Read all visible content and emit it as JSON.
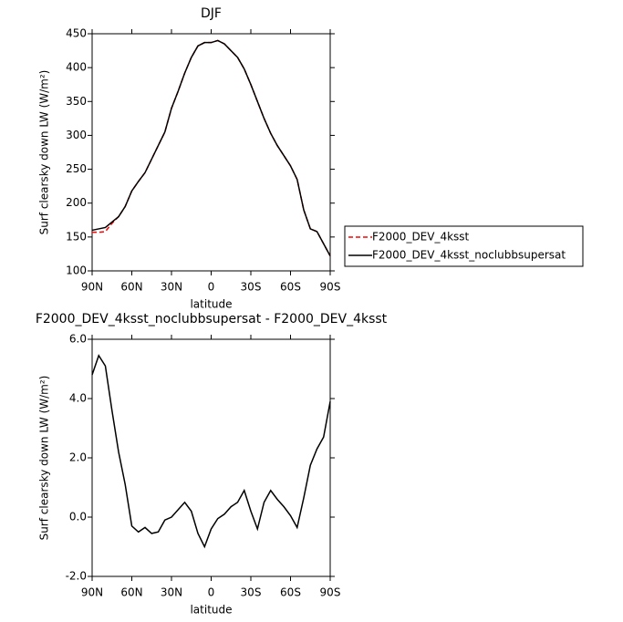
{
  "chart_data": [
    {
      "type": "line",
      "title": "DJF",
      "xlabel": "latitude",
      "ylabel": "Surf clearsky down LW (W/m²)",
      "x": [
        90,
        85,
        80,
        75,
        70,
        65,
        60,
        55,
        50,
        45,
        40,
        35,
        30,
        25,
        20,
        15,
        10,
        5,
        0,
        -5,
        -10,
        -15,
        -20,
        -25,
        -30,
        -35,
        -40,
        -45,
        -50,
        -55,
        -60,
        -65,
        -70,
        -75,
        -80,
        -85,
        -90
      ],
      "xlim": [
        90,
        -90
      ],
      "xticks": [
        {
          "value": 90,
          "label": "90N"
        },
        {
          "value": 60,
          "label": "60N"
        },
        {
          "value": 30,
          "label": "30N"
        },
        0,
        {
          "value": -30,
          "label": "30S"
        },
        {
          "value": -60,
          "label": "60S"
        },
        {
          "value": -90,
          "label": "90S"
        }
      ],
      "ylim": [
        100,
        450
      ],
      "yticks": [
        100,
        150,
        200,
        250,
        300,
        350,
        400,
        450
      ],
      "legend": "right",
      "series": [
        {
          "name": "F2000_DEV_4ksst",
          "color": "#ff0000",
          "dashed": true,
          "values": [
            157,
            157,
            158,
            170,
            180,
            195,
            218,
            232,
            245,
            265,
            285,
            305,
            340,
            365,
            392,
            415,
            432,
            437,
            437,
            440,
            435,
            425,
            415,
            398,
            375,
            350,
            325,
            303,
            285,
            270,
            255,
            235,
            190,
            162,
            158,
            140,
            122
          ]
        },
        {
          "name": "F2000_DEV_4ksst_noclubbsupersat",
          "color": "#000000",
          "dashed": false,
          "values": [
            160,
            162,
            164,
            172,
            180,
            195,
            218,
            232,
            245,
            265,
            285,
            305,
            340,
            365,
            392,
            415,
            432,
            437,
            437,
            440,
            435,
            425,
            415,
            398,
            375,
            350,
            325,
            303,
            285,
            270,
            255,
            235,
            190,
            162,
            158,
            140,
            122
          ]
        }
      ]
    },
    {
      "type": "line",
      "title": "F2000_DEV_4ksst_noclubbsupersat - F2000_DEV_4ksst",
      "xlabel": "latitude",
      "ylabel": "Surf clearsky down LW (W/m²)",
      "x": [
        90,
        85,
        80,
        75,
        70,
        65,
        60,
        55,
        50,
        45,
        40,
        35,
        30,
        25,
        20,
        15,
        10,
        5,
        0,
        -5,
        -10,
        -15,
        -20,
        -25,
        -30,
        -35,
        -40,
        -45,
        -50,
        -55,
        -60,
        -65,
        -70,
        -75,
        -80,
        -85,
        -90
      ],
      "xlim": [
        90,
        -90
      ],
      "xticks": [
        {
          "value": 90,
          "label": "90N"
        },
        {
          "value": 60,
          "label": "60N"
        },
        {
          "value": 30,
          "label": "30N"
        },
        0,
        {
          "value": -30,
          "label": "30S"
        },
        {
          "value": -60,
          "label": "60S"
        },
        {
          "value": -90,
          "label": "90S"
        }
      ],
      "ylim": [
        -2,
        6
      ],
      "yticks": [
        {
          "value": -2,
          "label": "-2.0"
        },
        {
          "value": 0,
          "label": "0.0"
        },
        {
          "value": 2,
          "label": "2.0"
        },
        {
          "value": 4,
          "label": "4.0"
        },
        {
          "value": 6,
          "label": "6.0"
        }
      ],
      "series": [
        {
          "color": "#000000",
          "dashed": false,
          "values": [
            4.8,
            5.45,
            5.1,
            3.6,
            2.2,
            1.1,
            -0.3,
            -0.5,
            -0.35,
            -0.55,
            -0.5,
            -0.1,
            0.0,
            0.25,
            0.5,
            0.2,
            -0.55,
            -1.0,
            -0.4,
            -0.05,
            0.1,
            0.35,
            0.5,
            0.9,
            0.2,
            -0.4,
            0.5,
            0.9,
            0.6,
            0.35,
            0.05,
            -0.35,
            0.65,
            1.75,
            2.3,
            2.7,
            3.9
          ]
        }
      ]
    }
  ]
}
